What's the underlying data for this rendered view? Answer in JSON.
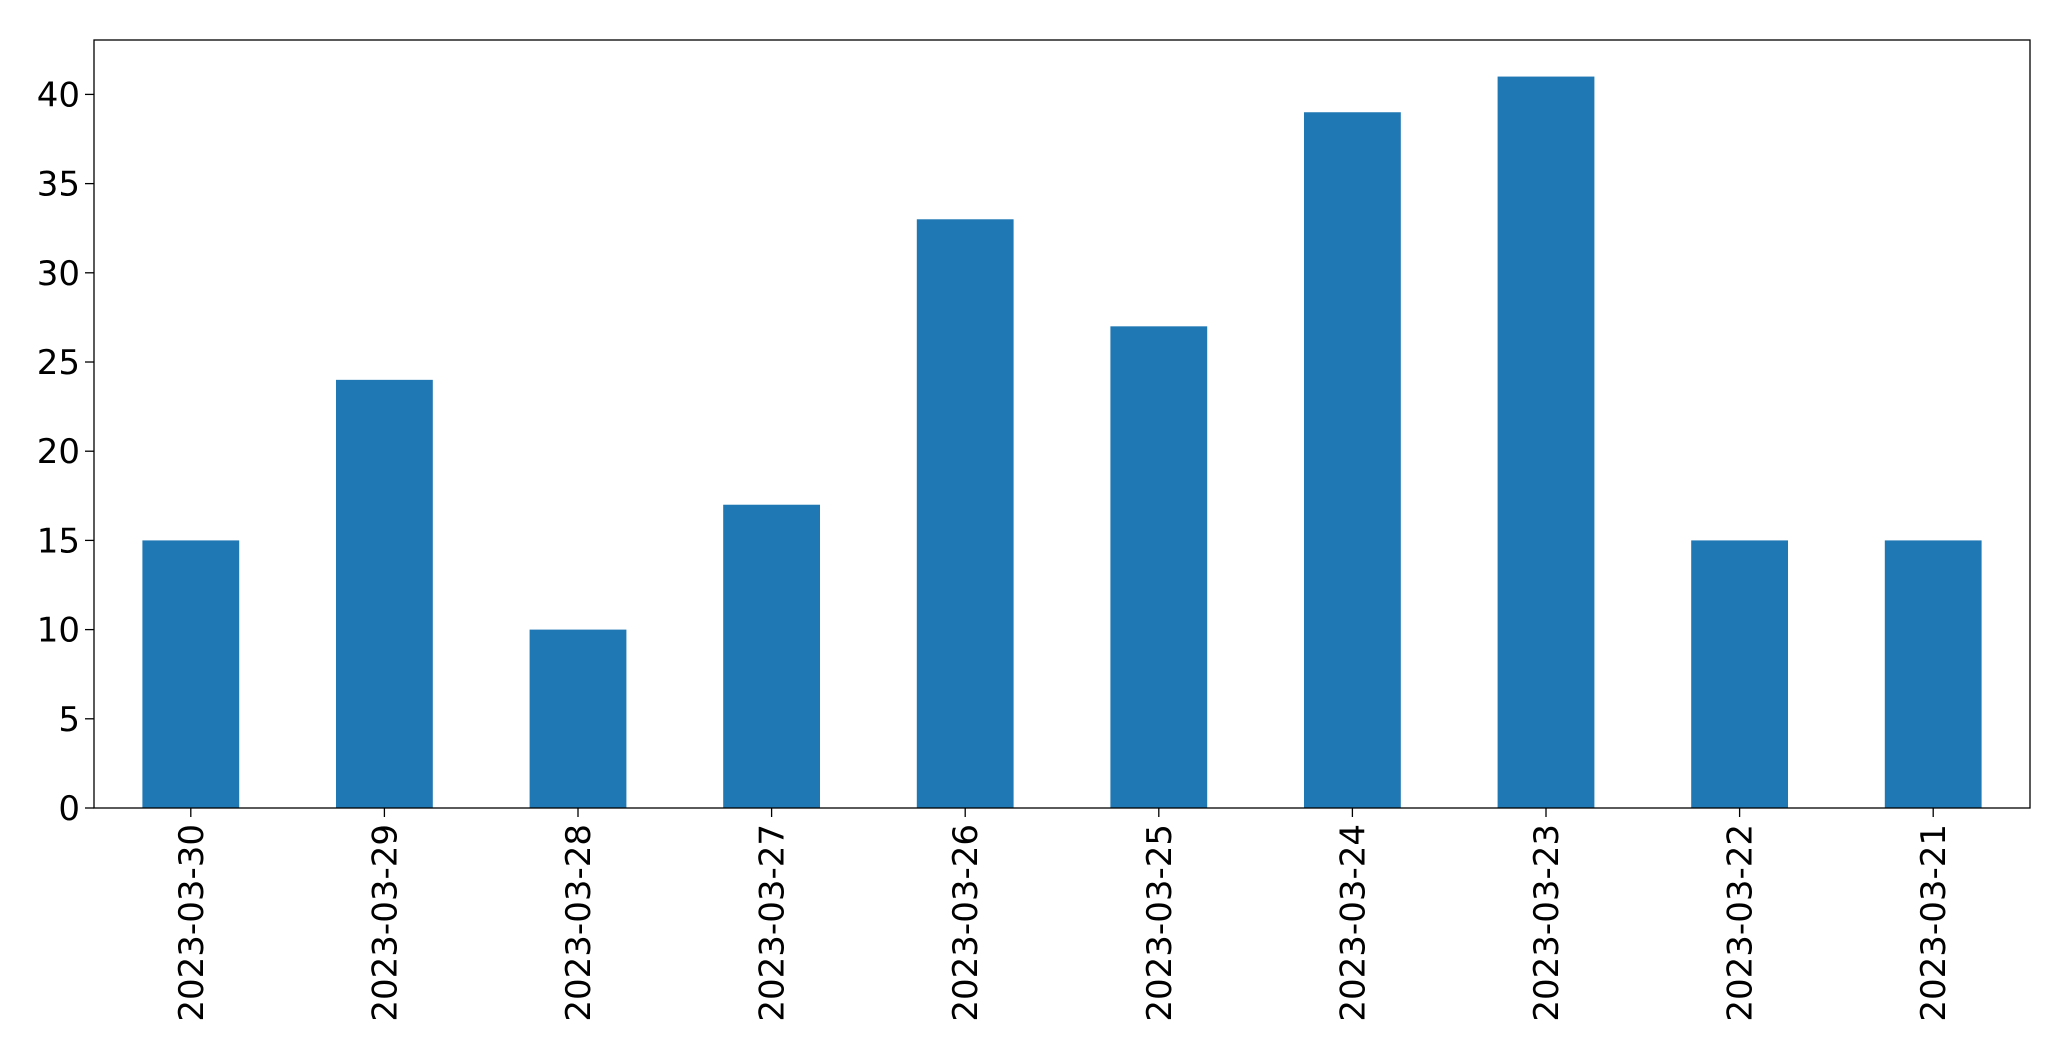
{
  "chart_data": {
    "type": "bar",
    "categories": [
      "2023-03-30",
      "2023-03-29",
      "2023-03-28",
      "2023-03-27",
      "2023-03-26",
      "2023-03-25",
      "2023-03-24",
      "2023-03-23",
      "2023-03-22",
      "2023-03-21"
    ],
    "values": [
      15,
      24,
      10,
      17,
      33,
      27,
      39,
      41,
      15,
      15
    ],
    "color": "#1f77b4",
    "ylim": [
      0,
      43.05
    ],
    "yticks": [
      0,
      5,
      10,
      15,
      20,
      25,
      30,
      35,
      40
    ],
    "grid": false
  }
}
